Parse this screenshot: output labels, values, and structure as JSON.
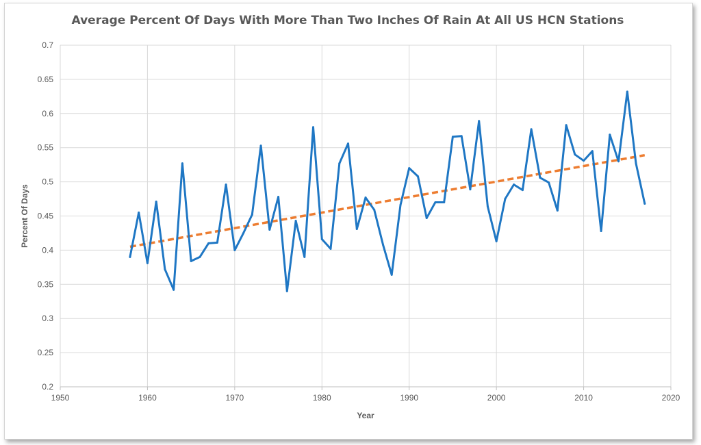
{
  "chart_data": {
    "type": "line",
    "title": "Average Percent Of Days With More Than Two Inches Of Rain At All US HCN Stations",
    "xlabel": "Year",
    "ylabel": "Percent Of Days",
    "xlim": [
      1950,
      2020
    ],
    "ylim": [
      0.2,
      0.7
    ],
    "x_ticks": [
      1950,
      1960,
      1970,
      1980,
      1990,
      2000,
      2010,
      2020
    ],
    "y_ticks": [
      0.2,
      0.25,
      0.3,
      0.35,
      0.4,
      0.45,
      0.5,
      0.55,
      0.6,
      0.65,
      0.7
    ],
    "grid": true,
    "legend": "none",
    "series": [
      {
        "color": "#1f77c4",
        "x": [
          1958,
          1959,
          1960,
          1961,
          1962,
          1963,
          1964,
          1965,
          1966,
          1967,
          1968,
          1969,
          1970,
          1971,
          1972,
          1973,
          1974,
          1975,
          1976,
          1977,
          1978,
          1979,
          1980,
          1981,
          1982,
          1983,
          1984,
          1985,
          1986,
          1987,
          1988,
          1989,
          1990,
          1991,
          1992,
          1993,
          1994,
          1995,
          1996,
          1997,
          1998,
          1999,
          2000,
          2001,
          2002,
          2003,
          2004,
          2005,
          2006,
          2007,
          2008,
          2009,
          2010,
          2011,
          2012,
          2013,
          2014,
          2015,
          2016,
          2017
        ],
        "values": [
          0.39,
          0.455,
          0.381,
          0.471,
          0.372,
          0.342,
          0.527,
          0.384,
          0.39,
          0.41,
          0.411,
          0.496,
          0.4,
          0.425,
          0.452,
          0.553,
          0.43,
          0.478,
          0.34,
          0.443,
          0.39,
          0.58,
          0.416,
          0.402,
          0.527,
          0.556,
          0.431,
          0.477,
          0.459,
          0.408,
          0.364,
          0.466,
          0.52,
          0.508,
          0.447,
          0.47,
          0.47,
          0.566,
          0.567,
          0.489,
          0.589,
          0.464,
          0.413,
          0.475,
          0.496,
          0.488,
          0.577,
          0.506,
          0.499,
          0.458,
          0.583,
          0.54,
          0.531,
          0.545,
          0.428,
          0.569,
          0.53,
          0.632,
          0.527,
          0.468
        ]
      }
    ],
    "trendline": {
      "color": "#ed7d31",
      "style": "dashed",
      "x": [
        1958,
        2017
      ],
      "values": [
        0.405,
        0.539
      ]
    }
  }
}
